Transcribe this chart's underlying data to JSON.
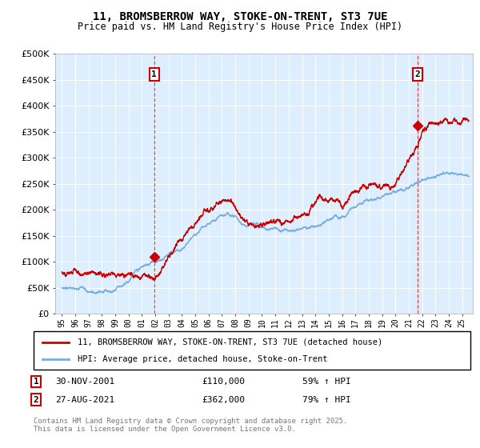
{
  "title": "11, BROMSBERROW WAY, STOKE-ON-TRENT, ST3 7UE",
  "subtitle": "Price paid vs. HM Land Registry's House Price Index (HPI)",
  "red_label": "11, BROMSBERROW WAY, STOKE-ON-TRENT, ST3 7UE (detached house)",
  "blue_label": "HPI: Average price, detached house, Stoke-on-Trent",
  "annotation1_date": "30-NOV-2001",
  "annotation1_price": "£110,000",
  "annotation1_hpi": "59% ↑ HPI",
  "annotation2_date": "27-AUG-2021",
  "annotation2_price": "£362,000",
  "annotation2_hpi": "79% ↑ HPI",
  "copyright": "Contains HM Land Registry data © Crown copyright and database right 2025.\nThis data is licensed under the Open Government Licence v3.0.",
  "red_color": "#cc0000",
  "blue_color": "#7aade0",
  "bg_color": "#ddeeff",
  "ylim": [
    0,
    500000
  ],
  "yticks": [
    0,
    50000,
    100000,
    150000,
    200000,
    250000,
    300000,
    350000,
    400000,
    450000,
    500000
  ],
  "purchase1_year": 2001.92,
  "purchase1_value": 110000,
  "purchase2_year": 2021.65,
  "purchase2_value": 362000
}
